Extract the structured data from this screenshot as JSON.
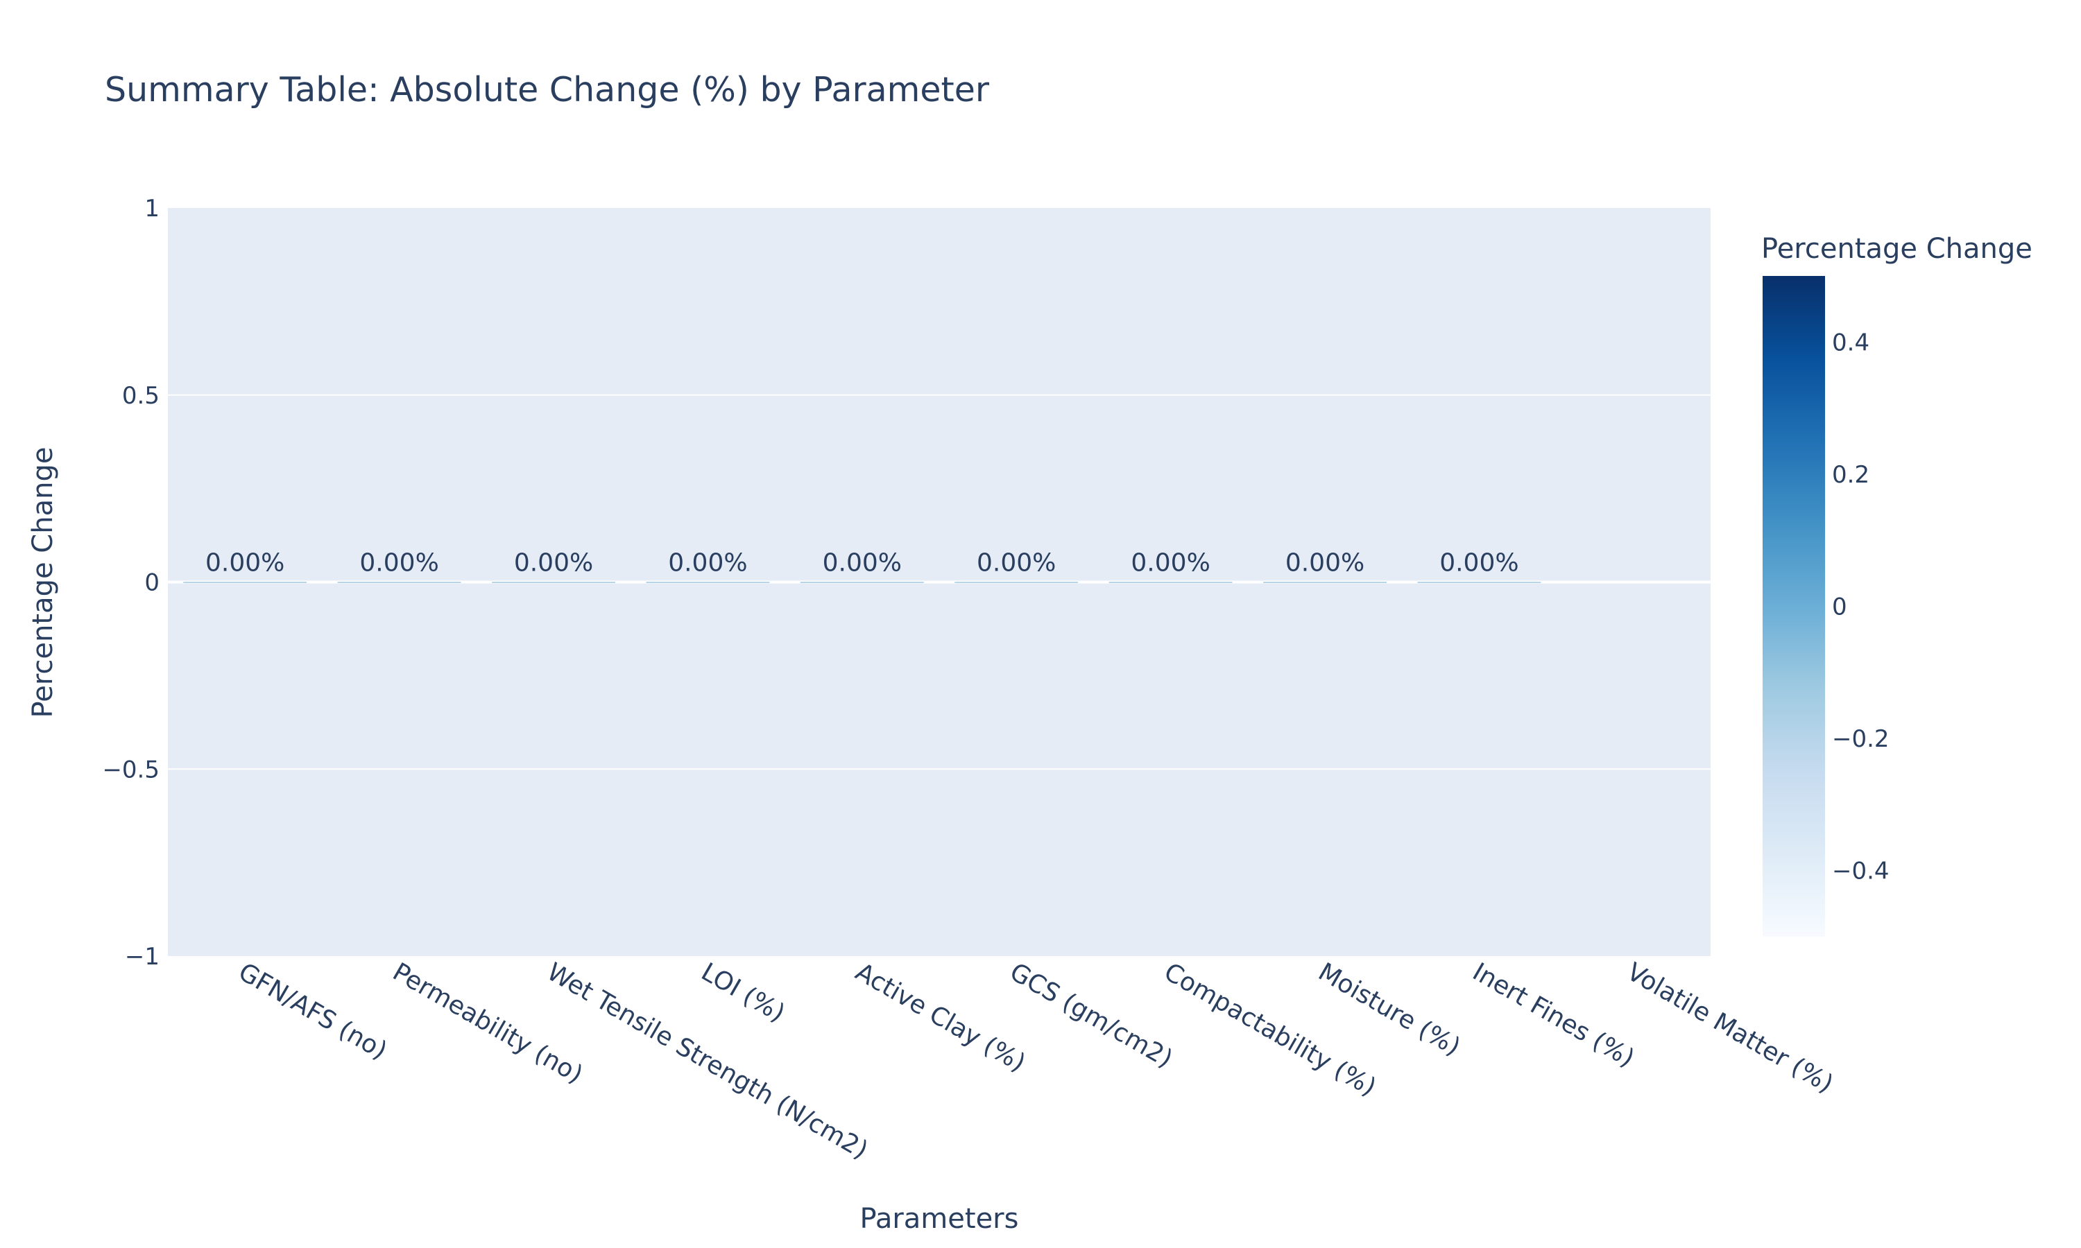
{
  "chart_data": {
    "type": "bar",
    "title": "Summary Table: Absolute Change (%) by Parameter",
    "xlabel": "Parameters",
    "ylabel": "Percentage Change",
    "categories": [
      "GFN/AFS (no)",
      "Permeability (no)",
      "Wet Tensile Strength (N/cm2)",
      "LOI (%)",
      "Active Clay (%)",
      "GCS (gm/cm2)",
      "Compactability (%)",
      "Moisture (%)",
      "Inert Fines (%)",
      "Volatile Matter (%)"
    ],
    "values": [
      0,
      0,
      0,
      0,
      0,
      0,
      0,
      0,
      0,
      null
    ],
    "data_labels": [
      "0.00%",
      "0.00%",
      "0.00%",
      "0.00%",
      "0.00%",
      "0.00%",
      "0.00%",
      "0.00%",
      "0.00%",
      ""
    ],
    "ylim": [
      -1,
      1
    ],
    "yticks": [
      1,
      0.5,
      0,
      -0.5,
      -1
    ],
    "ytick_labels": [
      "1",
      "0.5",
      "0",
      "−0.5",
      "−1"
    ],
    "grid": true,
    "colorbar": {
      "title": "Percentage Change",
      "range": [
        -0.5,
        0.5
      ],
      "ticks": [
        0.4,
        0.2,
        0,
        -0.2,
        -0.4
      ],
      "tick_labels": [
        "0.4",
        "0.2",
        "0",
        "−0.2",
        "−0.4"
      ],
      "colorscale": [
        "#f7fbff",
        "#deebf7",
        "#c6dbef",
        "#9ecae1",
        "#6baed6",
        "#4292c6",
        "#2171b5",
        "#08519c",
        "#08306b"
      ]
    },
    "colors": {
      "plot_background": "#e5ecf6",
      "grid": "#ffffff",
      "text": "#2a3f5f"
    }
  }
}
